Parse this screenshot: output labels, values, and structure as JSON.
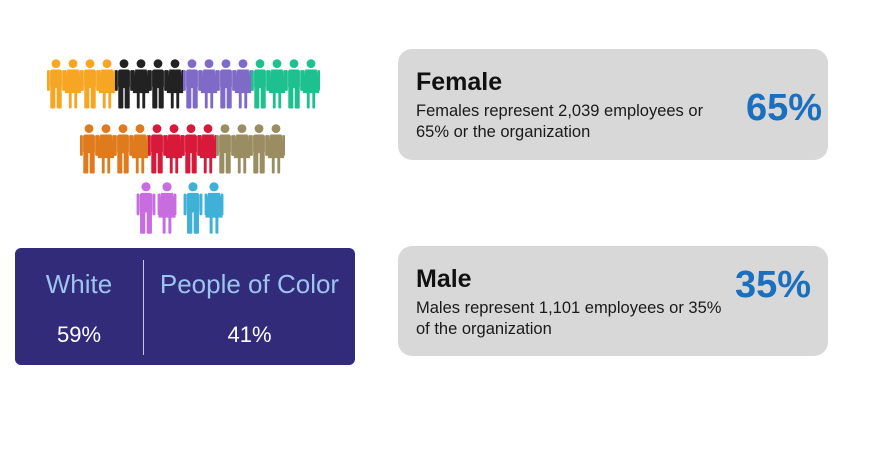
{
  "colors": {
    "orange": "#f6a623",
    "black": "#222222",
    "purple": "#7f6bc7",
    "teal": "#1fc08f",
    "dark_orange": "#e07b1d",
    "red": "#d8193a",
    "olive": "#9a8d62",
    "magenta": "#c86de0",
    "light_blue": "#3fb0d6",
    "panel": "#312b79",
    "panel_label": "#9dc3ee",
    "card_bg": "#d8d8d8",
    "accent_blue": "#1b6fbf"
  },
  "race": {
    "white_label": "White",
    "white_value": "59%",
    "poc_label": "People of Color",
    "poc_value": "41%"
  },
  "female": {
    "title": "Female",
    "description": "Females represent 2,039 employees or 65% or the organization",
    "percent": "65%"
  },
  "male": {
    "title": "Male",
    "description": "Males represent 1,101 employees or 35% of the organization",
    "percent": "35%"
  }
}
